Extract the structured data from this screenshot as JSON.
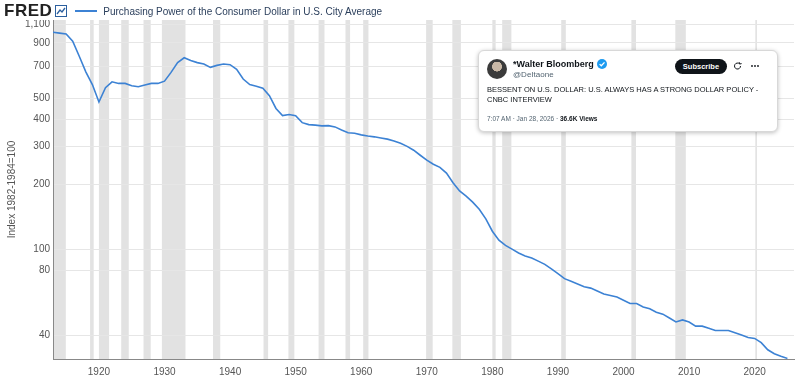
{
  "chart_data": {
    "type": "line",
    "logo": "FRED",
    "y_label": "Index 1982-1984=100",
    "series": [
      {
        "name": "Purchasing Power of the Consumer Dollar in U.S. City Average",
        "color": "#3c82d4",
        "values": [
          1010,
          1000,
          990,
          917,
          781,
          662,
          578,
          480,
          559,
          595,
          585,
          585,
          571,
          565,
          575,
          585,
          585,
          599,
          658,
          730,
          769,
          746,
          730,
          719,
          694,
          709,
          719,
          714,
          680,
          613,
          578,
          568,
          556,
          513,
          448,
          415,
          420,
          415,
          385,
          377,
          375,
          372,
          373,
          368,
          356,
          346,
          344,
          338,
          334,
          331,
          327,
          323,
          317,
          309,
          299,
          287,
          272,
          258,
          247,
          239,
          225,
          203,
          186,
          176,
          165,
          153,
          138,
          121,
          110,
          104,
          100,
          96,
          93,
          91,
          88,
          85,
          81,
          77,
          73,
          71,
          69,
          67,
          66,
          64,
          62,
          61,
          60,
          58,
          56,
          56,
          54,
          53,
          51,
          50,
          48,
          46,
          47,
          46,
          44,
          44,
          43,
          42,
          42,
          42,
          41,
          40,
          39,
          38.6,
          36.9,
          34.2,
          32.8,
          31.9,
          31.2
        ]
      }
    ],
    "x": [
      1913,
      1914,
      1915,
      1916,
      1917,
      1918,
      1919,
      1920,
      1921,
      1922,
      1923,
      1924,
      1925,
      1926,
      1927,
      1928,
      1929,
      1930,
      1931,
      1932,
      1933,
      1934,
      1935,
      1936,
      1937,
      1938,
      1939,
      1940,
      1941,
      1942,
      1943,
      1944,
      1945,
      1946,
      1947,
      1948,
      1949,
      1950,
      1951,
      1952,
      1953,
      1954,
      1955,
      1956,
      1957,
      1958,
      1959,
      1960,
      1961,
      1962,
      1963,
      1964,
      1965,
      1966,
      1967,
      1968,
      1969,
      1970,
      1971,
      1972,
      1973,
      1974,
      1975,
      1976,
      1977,
      1978,
      1979,
      1980,
      1981,
      1982,
      1983,
      1984,
      1985,
      1986,
      1987,
      1988,
      1989,
      1990,
      1991,
      1992,
      1993,
      1994,
      1995,
      1996,
      1997,
      1998,
      1999,
      2000,
      2001,
      2002,
      2003,
      2004,
      2005,
      2006,
      2007,
      2008,
      2009,
      2010,
      2011,
      2012,
      2013,
      2014,
      2015,
      2016,
      2017,
      2018,
      2019,
      2020,
      2021,
      2022,
      2023,
      2024,
      2025
    ],
    "recessions": [
      [
        1913.0,
        1914.95
      ],
      [
        1918.65,
        1919.2
      ],
      [
        1920.0,
        1921.55
      ],
      [
        1923.4,
        1924.55
      ],
      [
        1926.8,
        1927.9
      ],
      [
        1929.6,
        1933.2
      ],
      [
        1937.4,
        1938.5
      ],
      [
        1945.1,
        1945.8
      ],
      [
        1948.9,
        1949.8
      ],
      [
        1953.5,
        1954.4
      ],
      [
        1957.6,
        1958.3
      ],
      [
        1960.3,
        1961.1
      ],
      [
        1969.9,
        1970.9
      ],
      [
        1973.9,
        1975.2
      ],
      [
        1980.0,
        1980.5
      ],
      [
        1981.5,
        1982.9
      ],
      [
        1990.5,
        1991.2
      ],
      [
        2001.2,
        2001.9
      ],
      [
        2007.9,
        2009.5
      ],
      [
        2020.1,
        2020.35
      ]
    ],
    "xlim": [
      1913,
      2026
    ],
    "xticks": [
      1920,
      1930,
      1940,
      1950,
      1960,
      1970,
      1980,
      1990,
      2000,
      2010,
      2020
    ],
    "ylim": [
      31,
      1150
    ],
    "yticks": [
      40,
      80,
      100,
      200,
      300,
      400,
      500,
      700,
      900,
      {
        "value": 1100,
        "label": "1,100"
      }
    ],
    "log": "y",
    "grid": "y",
    "marker": "none",
    "line_style": "solid",
    "annotation": {
      "author": "*Walter Bloomberg",
      "handle": "@DeItaone",
      "button": "Subscribe",
      "text": "BESSENT ON U.S. DOLLAR: U.S. ALWAYS HAS A STRONG DOLLAR POLICY -CNBC INTERVIEW",
      "time": "7:07 AM · Jan 28, 2026 · ",
      "views": "36.6K Views"
    }
  }
}
